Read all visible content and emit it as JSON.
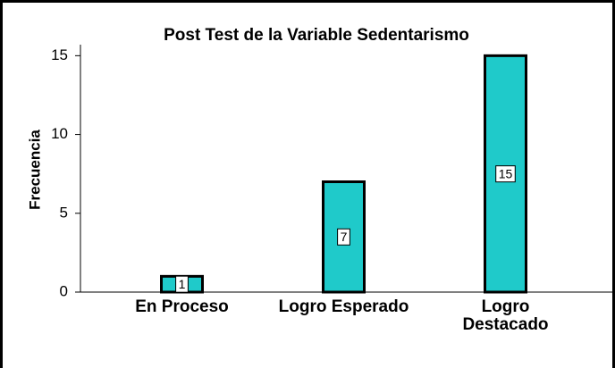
{
  "chart_data": {
    "type": "bar",
    "title": "Post Test de la Variable Sedentarismo",
    "y_label": "Frecuencia",
    "categories": [
      "En Proceso",
      "Logro Esperado",
      "Logro Destacado"
    ],
    "values": [
      1,
      7,
      15
    ],
    "color": "#1fcaca",
    "ylim": [
      0,
      15.7
    ],
    "yticks": [
      0,
      5,
      10,
      15
    ],
    "grid": false
  }
}
